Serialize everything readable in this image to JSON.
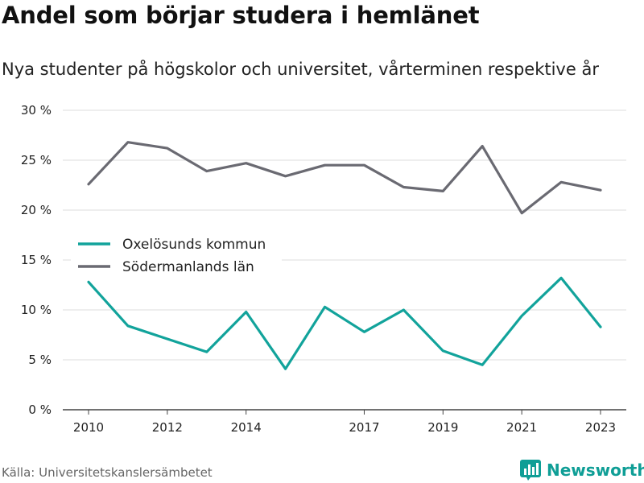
{
  "header": {
    "title": "Andel som börjar studera i hemlänet",
    "subtitle": "Nya studenter på högskolor och universitet, vårterminen respektive år"
  },
  "footer": {
    "source": "Källa: Universitetskanslersämbetet",
    "brand": "Newsworthy",
    "brand_icon": "bar-chart-logo-icon"
  },
  "colors": {
    "oxelosund": "#12a39b",
    "sodermanland": "#6a6a72",
    "grid": "#dddddd",
    "brand": "#0f9e96"
  },
  "chart_data": {
    "type": "line",
    "x": [
      2010,
      2011,
      2012,
      2013,
      2014,
      2015,
      2016,
      2017,
      2018,
      2019,
      2020,
      2021,
      2022,
      2023
    ],
    "x_tick_labels": [
      "2010",
      "2012",
      "2014",
      "2017",
      "2019",
      "2021",
      "2023"
    ],
    "x_tick_values": [
      2010,
      2012,
      2014,
      2017,
      2019,
      2021,
      2023
    ],
    "y_tick_labels": [
      "0 %",
      "5 %",
      "10 %",
      "15 %",
      "20 %",
      "25 %",
      "30 %"
    ],
    "y_tick_values": [
      0,
      5,
      10,
      15,
      20,
      25,
      30
    ],
    "ylim": [
      0,
      30
    ],
    "xlim": [
      2010,
      2023
    ],
    "grid": true,
    "legend_position": "left-middle",
    "series": [
      {
        "name": "Oxelösunds kommun",
        "values": [
          12.8,
          8.4,
          7.1,
          5.8,
          9.8,
          4.1,
          10.3,
          7.8,
          10.0,
          5.9,
          4.5,
          9.4,
          13.2,
          8.3
        ]
      },
      {
        "name": "Södermanlands län",
        "values": [
          22.6,
          26.8,
          26.2,
          23.9,
          24.7,
          23.4,
          24.5,
          24.5,
          22.3,
          21.9,
          26.4,
          19.7,
          22.8,
          22.0
        ]
      }
    ]
  }
}
